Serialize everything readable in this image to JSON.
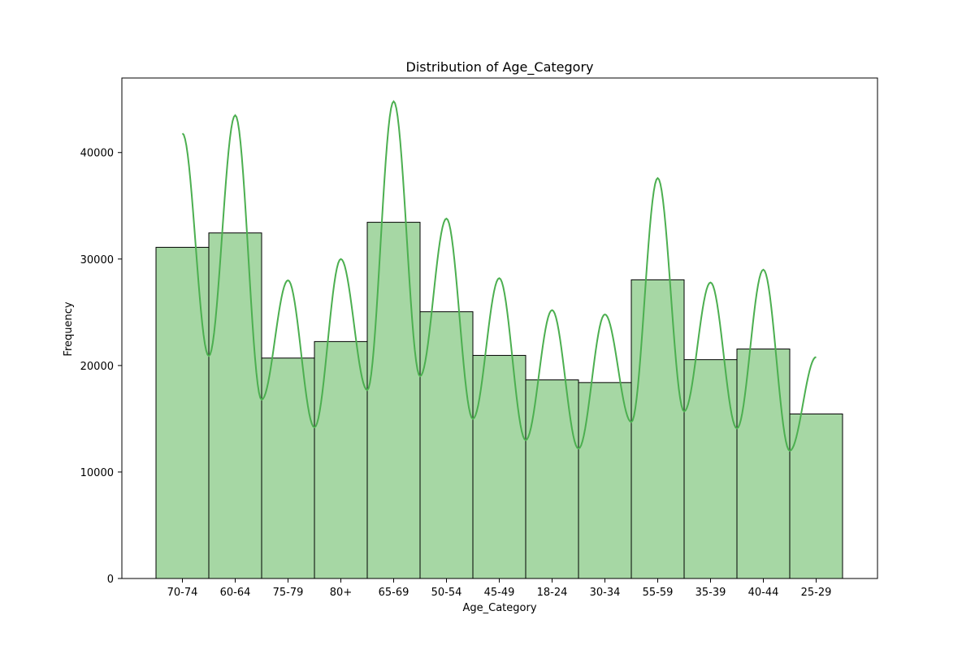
{
  "chart_data": {
    "type": "bar",
    "title": "Distribution of Age_Category",
    "xlabel": "Age_Category",
    "ylabel": "Frequency",
    "categories": [
      "70-74",
      "60-64",
      "75-79",
      "80+",
      "65-69",
      "50-54",
      "45-49",
      "18-24",
      "30-34",
      "55-59",
      "35-39",
      "40-44",
      "25-29"
    ],
    "values": [
      31100,
      32450,
      20700,
      22250,
      33450,
      25050,
      20950,
      18650,
      18400,
      28050,
      20550,
      21550,
      15450
    ],
    "ylim": [
      0,
      47000
    ],
    "yticks": [
      0,
      10000,
      20000,
      30000,
      40000
    ],
    "ytick_labels": [
      "0",
      "10000",
      "20000",
      "30000",
      "40000"
    ],
    "grid": false,
    "colors": {
      "bar_fill": "#a6d7a4",
      "bar_edge": "#000000",
      "kde_line": "#4caf50"
    },
    "kde": {
      "x": [
        0.0,
        0.5,
        1.0,
        1.5,
        2.0,
        2.5,
        3.0,
        3.5,
        4.0,
        4.5,
        5.0,
        5.5,
        6.0,
        6.5,
        7.0,
        7.5,
        8.0,
        8.5,
        9.0,
        9.5,
        10.0,
        10.5,
        11.0,
        11.5,
        12.0
      ],
      "y": [
        41800,
        20900,
        43500,
        16800,
        28000,
        14200,
        30000,
        17700,
        44800,
        19000,
        33800,
        15000,
        28200,
        13000,
        25200,
        12200,
        24800,
        14700,
        37600,
        15700,
        27800,
        14100,
        29000,
        12000,
        20800
      ]
    }
  }
}
